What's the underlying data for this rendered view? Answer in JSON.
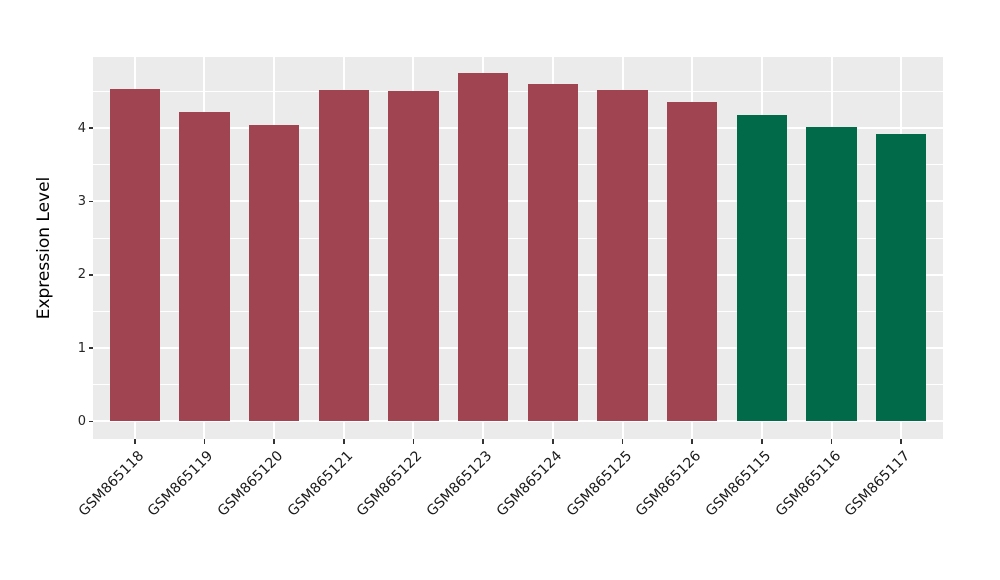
{
  "chart_data": {
    "type": "bar",
    "title": "",
    "xlabel": "",
    "ylabel": "Expression Level",
    "categories": [
      "GSM865118",
      "GSM865119",
      "GSM865120",
      "GSM865121",
      "GSM865122",
      "GSM865123",
      "GSM865124",
      "GSM865125",
      "GSM865126",
      "GSM865115",
      "GSM865116",
      "GSM865117"
    ],
    "values": [
      4.54,
      4.22,
      4.04,
      4.52,
      4.5,
      4.75,
      4.6,
      4.52,
      4.36,
      4.18,
      4.01,
      3.92
    ],
    "bar_colors": [
      "#A04451",
      "#A04451",
      "#A04451",
      "#A04451",
      "#A04451",
      "#A04451",
      "#A04451",
      "#A04451",
      "#A04451",
      "#016A48",
      "#016A48",
      "#016A48"
    ],
    "group_colors": {
      "maroon_group": "#A04451",
      "green_group": "#016A48"
    },
    "y_ticks": [
      0,
      1,
      2,
      3,
      4
    ],
    "y_minor_ticks": [
      0.5,
      1.5,
      2.5,
      3.5,
      4.5
    ],
    "ylim": [
      -0.24,
      4.97
    ],
    "grid": true,
    "legend": "none",
    "panel_bg": "#EBEBEB",
    "grid_color": "#FFFFFF",
    "axis_text_color": "#262626"
  }
}
